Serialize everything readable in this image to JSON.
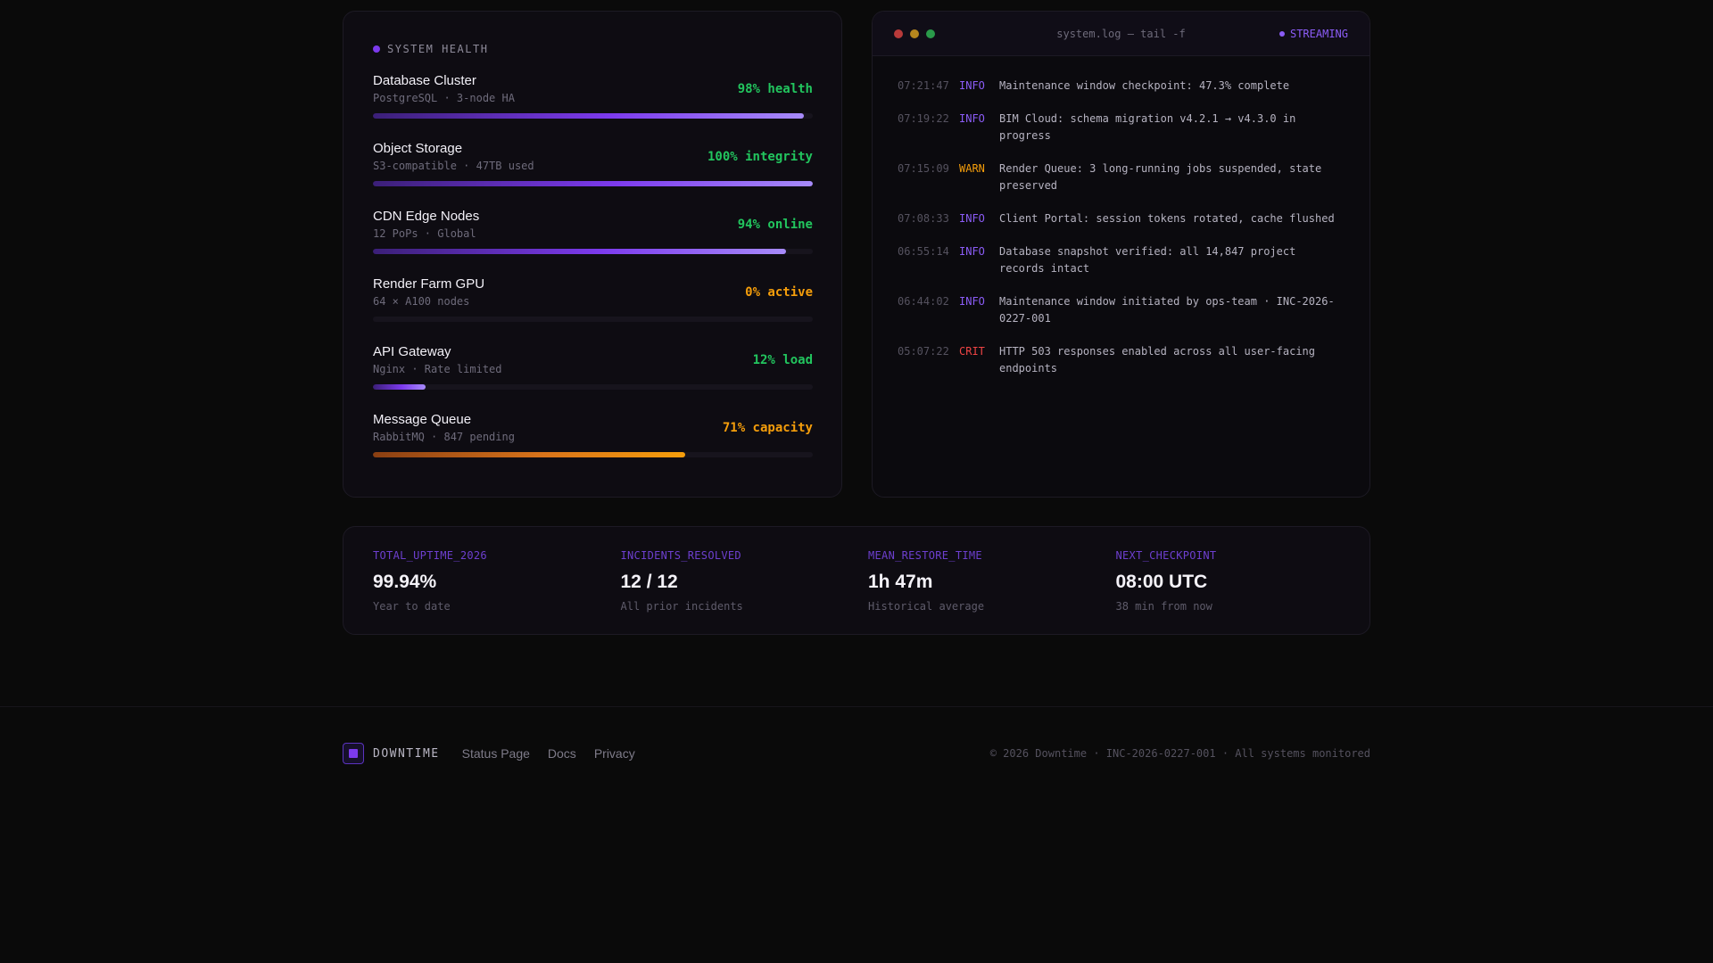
{
  "health": {
    "heading": "SYSTEM HEALTH",
    "services": [
      {
        "name": "Database Cluster",
        "sub": "PostgreSQL · 3-node HA",
        "status": "98% health",
        "level": 0.98,
        "color": "green"
      },
      {
        "name": "Object Storage",
        "sub": "S3-compatible · 47TB used",
        "status": "100% integrity",
        "level": 1.0,
        "color": "green"
      },
      {
        "name": "CDN Edge Nodes",
        "sub": "12 PoPs · Global",
        "status": "94% online",
        "level": 0.94,
        "color": "green"
      },
      {
        "name": "Render Farm GPU",
        "sub": "64 × A100 nodes",
        "status": "0% active",
        "level": 0.0,
        "color": "orange"
      },
      {
        "name": "API Gateway",
        "sub": "Nginx · Rate limited",
        "status": "12% load",
        "level": 0.12,
        "color": "green"
      },
      {
        "name": "Message Queue",
        "sub": "RabbitMQ · 847 pending",
        "status": "71% capacity",
        "level": 0.71,
        "color": "orange"
      }
    ]
  },
  "log": {
    "title": "system.log — tail -f",
    "streaming_label": "STREAMING",
    "entries": [
      {
        "time": "07:21:47",
        "level": "INFO",
        "msg": "Maintenance window checkpoint: 47.3% complete"
      },
      {
        "time": "07:19:22",
        "level": "INFO",
        "msg": "BIM Cloud: schema migration v4.2.1 → v4.3.0 in progress"
      },
      {
        "time": "07:15:09",
        "level": "WARN",
        "msg": "Render Queue: 3 long-running jobs suspended, state preserved"
      },
      {
        "time": "07:08:33",
        "level": "INFO",
        "msg": "Client Portal: session tokens rotated, cache flushed"
      },
      {
        "time": "06:55:14",
        "level": "INFO",
        "msg": "Database snapshot verified: all 14,847 project records intact"
      },
      {
        "time": "06:44:02",
        "level": "INFO",
        "msg": "Maintenance window initiated by ops-team · INC-2026-0227-001"
      },
      {
        "time": "05:07:22",
        "level": "CRIT",
        "msg": "HTTP 503 responses enabled across all user-facing endpoints"
      }
    ]
  },
  "stats": [
    {
      "key": "TOTAL_UPTIME_2026",
      "value": "99.94%",
      "note": "Year to date"
    },
    {
      "key": "INCIDENTS_RESOLVED",
      "value": "12 / 12",
      "note": "All prior incidents"
    },
    {
      "key": "MEAN_RESTORE_TIME",
      "value": "1h 47m",
      "note": "Historical average"
    },
    {
      "key": "NEXT_CHECKPOINT",
      "value": "08:00 UTC",
      "note": "38 min from now"
    }
  ],
  "footer": {
    "brand": "DOWNTIME",
    "links": [
      "Status Page",
      "Docs",
      "Privacy"
    ],
    "copyright": "© 2026 Downtime · INC-2026-0227-001 · All systems monitored"
  }
}
